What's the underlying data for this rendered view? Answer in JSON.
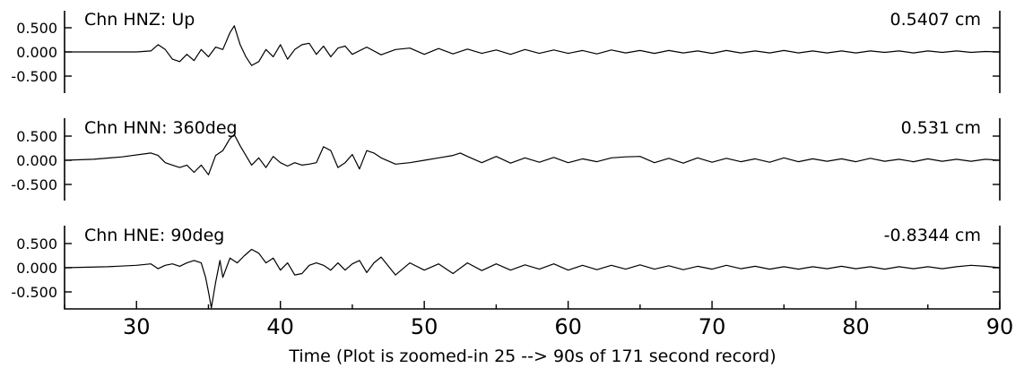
{
  "chart_data": {
    "type": "line",
    "xlabel": "Time (Plot is zoomed-in 25 --> 90s of 171 second record)",
    "xlim": [
      25,
      90
    ],
    "xticks": [
      "30",
      "40",
      "50",
      "60",
      "70",
      "80",
      "90"
    ],
    "yticks": [
      "0.500",
      "0.000",
      "-0.500"
    ],
    "panels": [
      {
        "title": "Chn HNZ: Up",
        "peak_label": "0.5407 cm",
        "ylim": [
          -0.85,
          0.85
        ],
        "x": [
          25,
          30,
          31,
          31.5,
          32,
          32.5,
          33,
          33.5,
          34,
          34.5,
          35,
          35.5,
          36,
          36.5,
          36.8,
          37.2,
          37.6,
          38,
          38.5,
          39,
          39.5,
          40,
          40.5,
          41,
          41.5,
          42,
          42.5,
          43,
          43.5,
          44,
          44.5,
          45,
          46,
          47,
          48,
          49,
          50,
          51,
          52,
          53,
          54,
          55,
          56,
          57,
          58,
          59,
          60,
          61,
          62,
          63,
          64,
          65,
          66,
          67,
          68,
          69,
          70,
          71,
          72,
          73,
          74,
          75,
          76,
          77,
          78,
          79,
          80,
          81,
          82,
          83,
          84,
          85,
          86,
          87,
          88,
          89,
          90
        ],
        "y": [
          0,
          0,
          0.02,
          0.15,
          0.05,
          -0.15,
          -0.2,
          -0.05,
          -0.18,
          0.05,
          -0.1,
          0.1,
          0.05,
          0.4,
          0.54,
          0.15,
          -0.1,
          -0.28,
          -0.2,
          0.05,
          -0.1,
          0.15,
          -0.15,
          0.05,
          0.15,
          0.18,
          -0.05,
          0.12,
          -0.1,
          0.08,
          0.12,
          -0.05,
          0.1,
          -0.06,
          0.05,
          0.08,
          -0.05,
          0.07,
          -0.04,
          0.06,
          -0.03,
          0.04,
          -0.05,
          0.05,
          -0.03,
          0.04,
          -0.03,
          0.03,
          -0.04,
          0.04,
          -0.02,
          0.03,
          -0.03,
          0.03,
          -0.02,
          0.02,
          -0.03,
          0.03,
          -0.02,
          0.02,
          -0.02,
          0.03,
          -0.02,
          0.02,
          -0.02,
          0.02,
          -0.02,
          0.02,
          -0.01,
          0.02,
          -0.02,
          0.02,
          -0.01,
          0.02,
          -0.01,
          0.01,
          0
        ]
      },
      {
        "title": "Chn HNN: 360deg",
        "peak_label": "0.531 cm",
        "ylim": [
          -0.85,
          0.85
        ],
        "x": [
          25,
          27,
          29,
          31,
          31.5,
          32,
          32.5,
          33,
          33.5,
          34,
          34.5,
          35,
          35.5,
          36,
          36.5,
          36.8,
          37.2,
          37.6,
          38,
          38.5,
          39,
          39.5,
          40,
          40.5,
          41,
          41.5,
          42,
          42.5,
          43,
          43.5,
          44,
          44.5,
          45,
          45.5,
          46,
          46.5,
          47,
          48,
          49,
          50,
          51,
          52,
          52.5,
          53,
          54,
          55,
          56,
          57,
          58,
          59,
          60,
          61,
          62,
          63,
          64,
          65,
          66,
          67,
          68,
          69,
          70,
          71,
          72,
          73,
          74,
          75,
          76,
          77,
          78,
          79,
          80,
          81,
          82,
          83,
          84,
          85,
          86,
          87,
          88,
          89,
          90
        ],
        "y": [
          0,
          0.02,
          0.07,
          0.15,
          0.1,
          -0.05,
          -0.1,
          -0.15,
          -0.1,
          -0.25,
          -0.1,
          -0.3,
          0.1,
          0.2,
          0.45,
          0.53,
          0.3,
          0.1,
          -0.1,
          0.05,
          -0.15,
          0.08,
          -0.05,
          -0.12,
          -0.05,
          -0.1,
          -0.08,
          -0.05,
          0.28,
          0.2,
          -0.15,
          -0.05,
          0.12,
          -0.18,
          0.2,
          0.15,
          0.05,
          -0.08,
          -0.05,
          0,
          0.05,
          0.1,
          0.15,
          0.08,
          -0.05,
          0.08,
          -0.06,
          0.05,
          -0.04,
          0.06,
          -0.05,
          0.03,
          -0.03,
          0.05,
          0.07,
          0.08,
          -0.05,
          0.04,
          -0.06,
          0.05,
          -0.04,
          0.04,
          -0.03,
          0.03,
          -0.04,
          0.05,
          -0.03,
          0.03,
          -0.02,
          0.03,
          -0.03,
          0.04,
          -0.02,
          0.02,
          -0.03,
          0.03,
          -0.02,
          0.02,
          -0.02,
          0.02,
          0
        ]
      },
      {
        "title": "Chn HNE: 90deg",
        "peak_label": "-0.8344 cm",
        "ylim": [
          -0.85,
          0.85
        ],
        "x": [
          25,
          28,
          30,
          31,
          31.5,
          32,
          32.5,
          33,
          33.5,
          34,
          34.5,
          34.8,
          35,
          35.2,
          35.5,
          35.8,
          36,
          36.5,
          37,
          37.5,
          38,
          38.5,
          39,
          39.5,
          40,
          40.5,
          41,
          41.5,
          42,
          42.5,
          43,
          43.5,
          44,
          44.5,
          45,
          45.5,
          46,
          46.5,
          47,
          48,
          49,
          50,
          51,
          52,
          53,
          54,
          55,
          56,
          57,
          58,
          59,
          60,
          61,
          62,
          63,
          64,
          65,
          66,
          67,
          68,
          69,
          70,
          71,
          72,
          73,
          74,
          75,
          76,
          77,
          78,
          79,
          80,
          81,
          82,
          83,
          84,
          85,
          86,
          87,
          88,
          89,
          90
        ],
        "y": [
          0,
          0.02,
          0.05,
          0.08,
          -0.02,
          0.05,
          0.08,
          0.03,
          0.1,
          0.15,
          0.1,
          -0.2,
          -0.5,
          -0.83,
          -0.3,
          0.15,
          -0.2,
          0.2,
          0.1,
          0.25,
          0.38,
          0.3,
          0.1,
          0.2,
          -0.05,
          0.1,
          -0.15,
          -0.12,
          0.05,
          0.1,
          0.05,
          -0.05,
          0.1,
          -0.05,
          0.08,
          0.15,
          -0.1,
          0.1,
          0.22,
          -0.15,
          0.1,
          -0.05,
          0.08,
          -0.12,
          0.1,
          -0.06,
          0.08,
          -0.05,
          0.06,
          -0.03,
          0.08,
          -0.05,
          0.05,
          -0.04,
          0.05,
          -0.03,
          0.06,
          -0.03,
          0.04,
          -0.04,
          0.03,
          -0.03,
          0.05,
          -0.02,
          0.03,
          -0.03,
          0.02,
          -0.03,
          0.02,
          -0.02,
          0.03,
          -0.02,
          0.02,
          -0.03,
          0.02,
          -0.02,
          0.02,
          -0.02,
          0.02,
          0.05,
          0.03,
          0
        ]
      }
    ]
  }
}
